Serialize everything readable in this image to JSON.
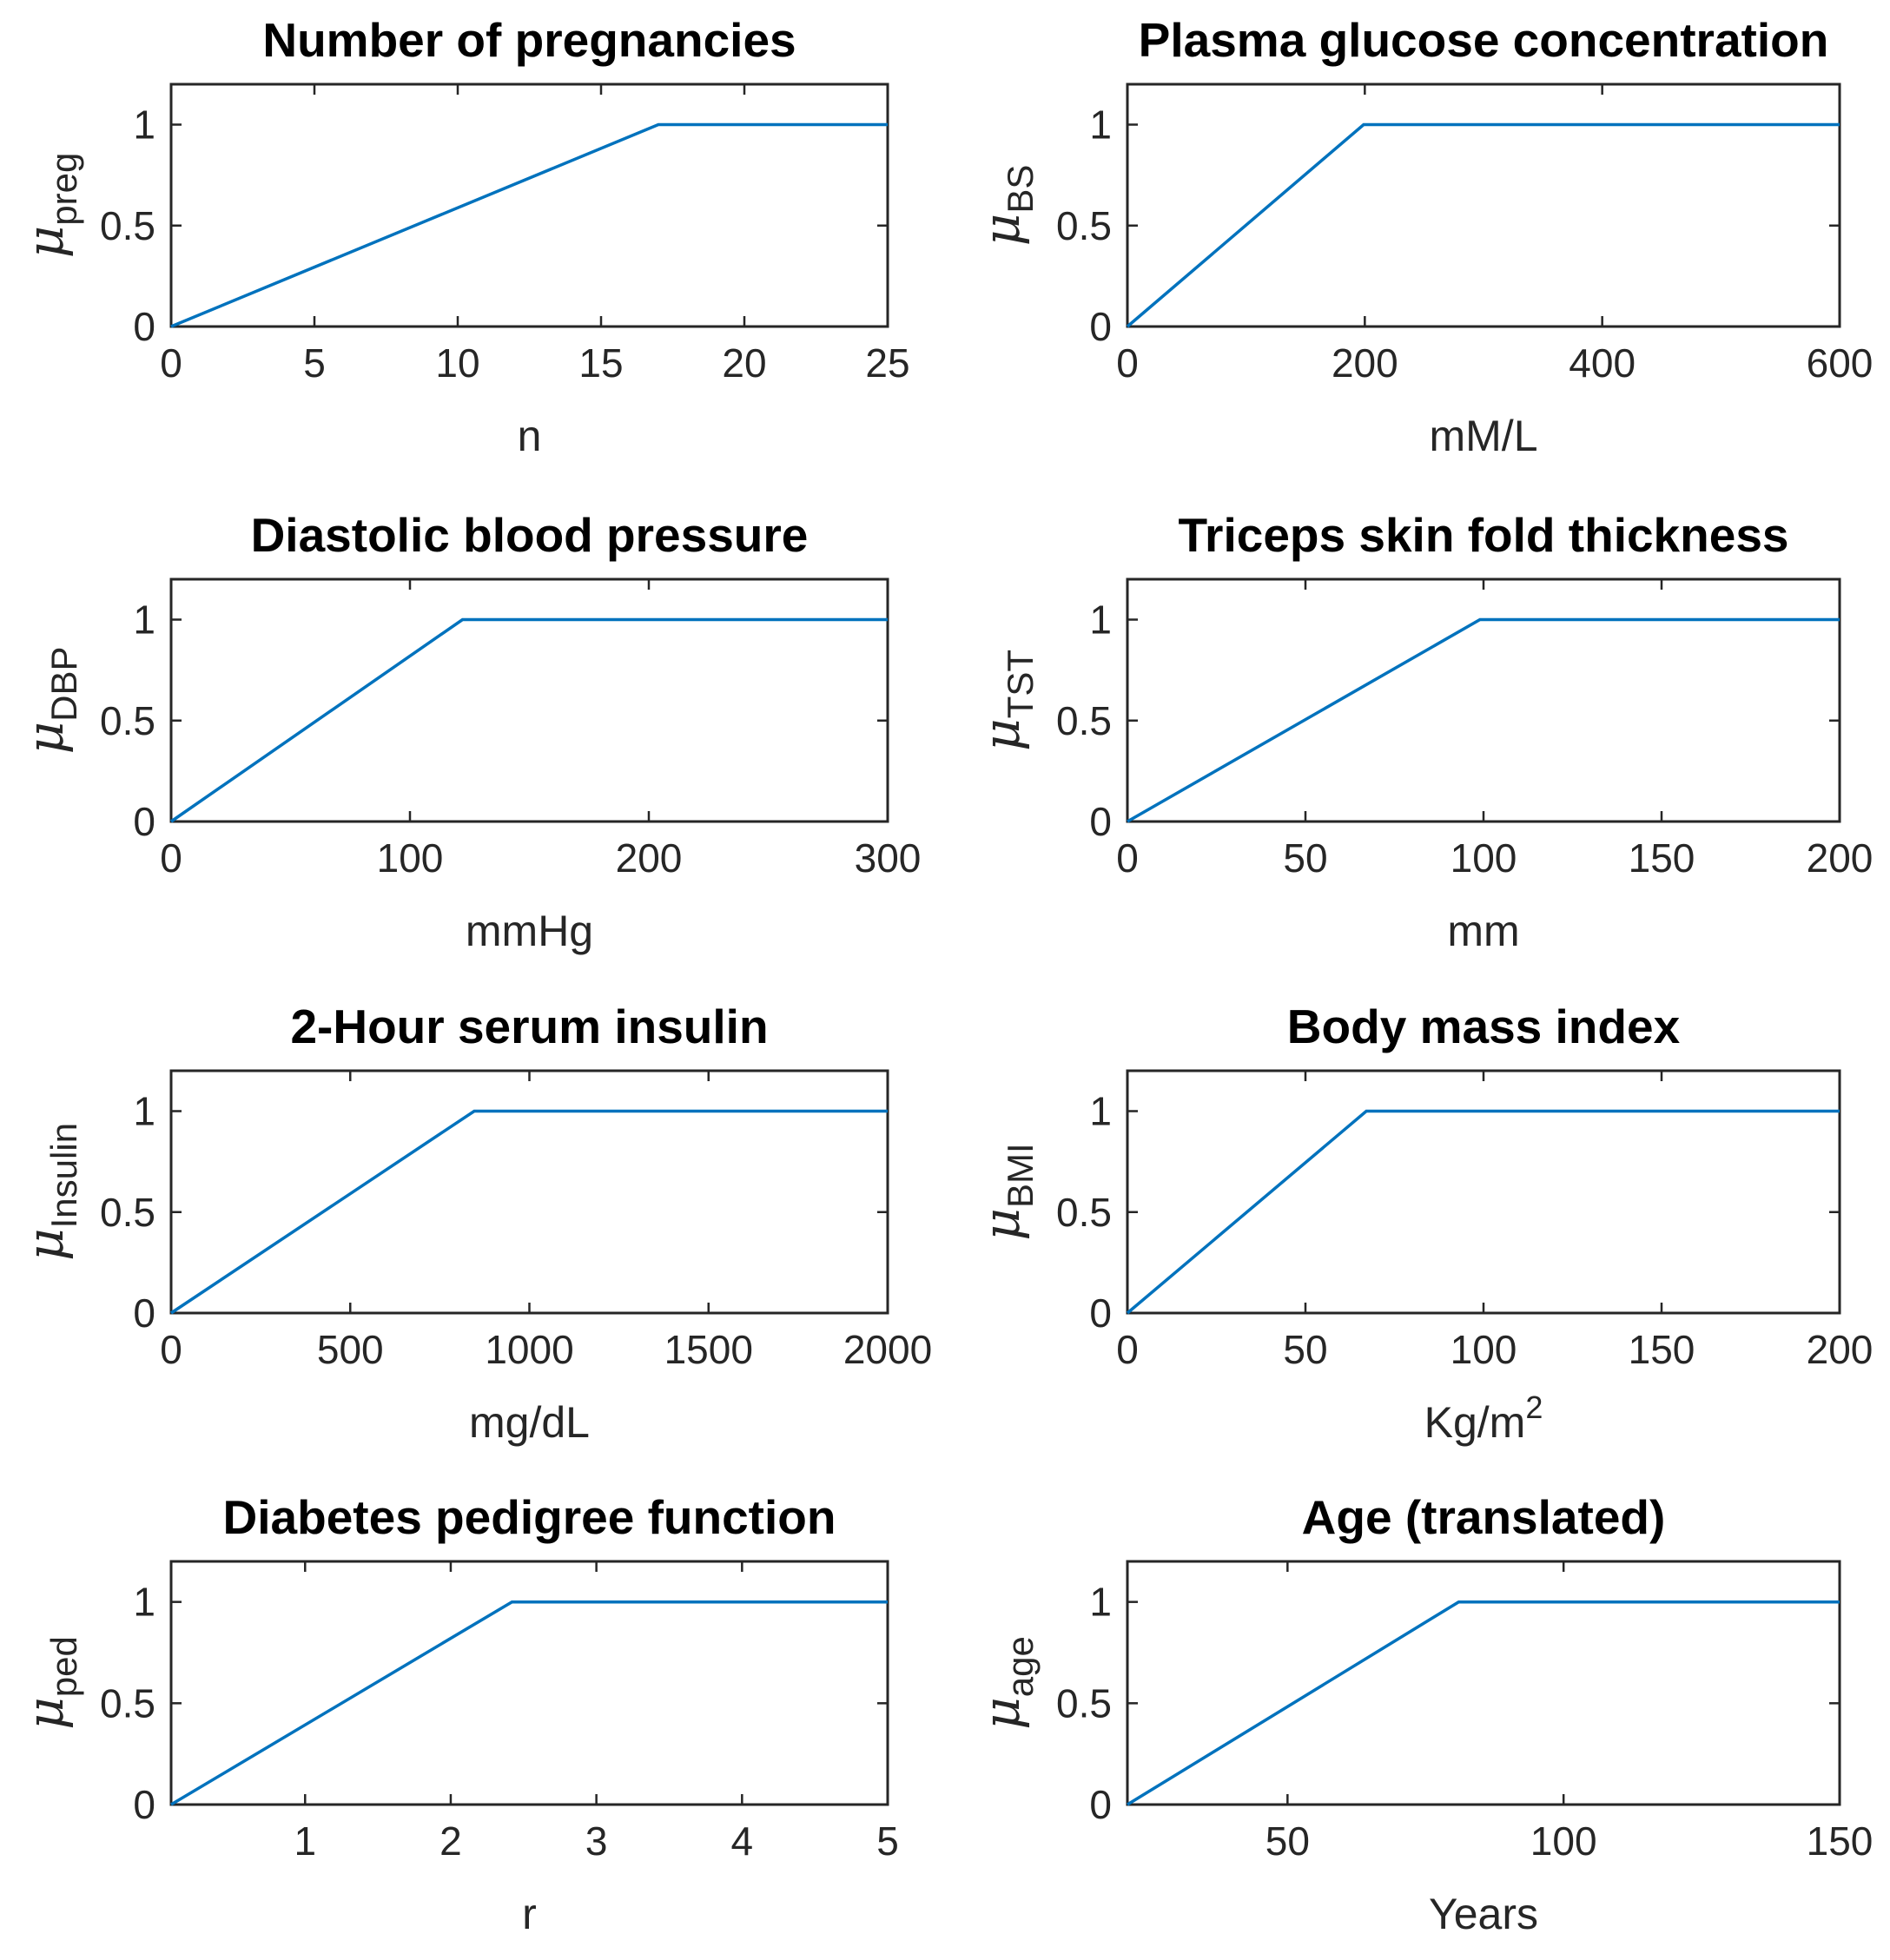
{
  "colors": {
    "line": "#0072BD",
    "axis": "#262626",
    "background": "#FFFFFF"
  },
  "chart_data": [
    {
      "type": "line",
      "title": "Number of pregnancies",
      "xlabel": "n",
      "ylabel": {
        "symbol": "μ",
        "sub": "preg"
      },
      "xlim": [
        0,
        25
      ],
      "ylim": [
        0,
        1.2
      ],
      "xticks": [
        0,
        5,
        10,
        15,
        20,
        25
      ],
      "xticklabels": [
        "0",
        "5",
        "10",
        "15",
        "20",
        "25"
      ],
      "yticks": [
        0,
        0.5,
        1
      ],
      "yticklabels": [
        "0",
        "0.5",
        "1"
      ],
      "grid": false,
      "x": [
        0,
        17,
        25
      ],
      "y": [
        0,
        1,
        1
      ]
    },
    {
      "type": "line",
      "title": "Plasma glucose concentration",
      "xlabel": "mM/L",
      "ylabel": {
        "symbol": "μ",
        "sub": "BS"
      },
      "xlim": [
        0,
        600
      ],
      "ylim": [
        0,
        1.2
      ],
      "xticks": [
        0,
        200,
        400,
        600
      ],
      "xticklabels": [
        "0",
        "200",
        "400",
        "600"
      ],
      "yticks": [
        0,
        0.5,
        1
      ],
      "yticklabels": [
        "0",
        "0.5",
        "1"
      ],
      "grid": false,
      "x": [
        0,
        199,
        600
      ],
      "y": [
        0,
        1,
        1
      ]
    },
    {
      "type": "line",
      "title": "Diastolic blood pressure",
      "xlabel": "mmHg",
      "ylabel": {
        "symbol": "μ",
        "sub": "DBP"
      },
      "xlim": [
        0,
        300
      ],
      "ylim": [
        0,
        1.2
      ],
      "xticks": [
        0,
        100,
        200,
        300
      ],
      "xticklabels": [
        "0",
        "100",
        "200",
        "300"
      ],
      "yticks": [
        0,
        0.5,
        1
      ],
      "yticklabels": [
        "0",
        "0.5",
        "1"
      ],
      "grid": false,
      "x": [
        0,
        122,
        300
      ],
      "y": [
        0,
        1,
        1
      ]
    },
    {
      "type": "line",
      "title": "Triceps skin fold thickness",
      "xlabel": "mm",
      "ylabel": {
        "symbol": "μ",
        "sub": "TST"
      },
      "xlim": [
        0,
        200
      ],
      "ylim": [
        0,
        1.2
      ],
      "xticks": [
        0,
        50,
        100,
        150,
        200
      ],
      "xticklabels": [
        "0",
        "50",
        "100",
        "150",
        "200"
      ],
      "yticks": [
        0,
        0.5,
        1
      ],
      "yticklabels": [
        "0",
        "0.5",
        "1"
      ],
      "grid": false,
      "x": [
        0,
        99,
        200
      ],
      "y": [
        0,
        1,
        1
      ]
    },
    {
      "type": "line",
      "title": "2-Hour serum insulin",
      "xlabel": "mg/dL",
      "ylabel": {
        "symbol": "μ",
        "sub": "Insulin"
      },
      "xlim": [
        0,
        2000
      ],
      "ylim": [
        0,
        1.2
      ],
      "xticks": [
        0,
        500,
        1000,
        1500,
        2000
      ],
      "xticklabels": [
        "0",
        "500",
        "1000",
        "1500",
        "2000"
      ],
      "yticks": [
        0,
        0.5,
        1
      ],
      "yticklabels": [
        "0",
        "0.5",
        "1"
      ],
      "grid": false,
      "x": [
        0,
        846,
        2000
      ],
      "y": [
        0,
        1,
        1
      ]
    },
    {
      "type": "line",
      "title": "Body mass index",
      "xlabel": {
        "base": "Kg/m",
        "sup": "2"
      },
      "ylabel": {
        "symbol": "μ",
        "sub": "BMI"
      },
      "xlim": [
        0,
        200
      ],
      "ylim": [
        0,
        1.2
      ],
      "xticks": [
        0,
        50,
        100,
        150,
        200
      ],
      "xticklabels": [
        "0",
        "50",
        "100",
        "150",
        "200"
      ],
      "yticks": [
        0,
        0.5,
        1
      ],
      "yticklabels": [
        "0",
        "0.5",
        "1"
      ],
      "grid": false,
      "x": [
        0,
        67.1,
        200
      ],
      "y": [
        0,
        1,
        1
      ]
    },
    {
      "type": "line",
      "title": "Diabetes pedigree function",
      "xlabel": "r",
      "ylabel": {
        "symbol": "μ",
        "sub": "ped"
      },
      "xlim": [
        0.08,
        5
      ],
      "ylim": [
        0,
        1.2
      ],
      "xticks": [
        1,
        2,
        3,
        4,
        5
      ],
      "xticklabels": [
        "1",
        "2",
        "3",
        "4",
        "5"
      ],
      "yticks": [
        0,
        0.5,
        1
      ],
      "yticklabels": [
        "0",
        "0.5",
        "1"
      ],
      "grid": false,
      "x": [
        0.08,
        2.42,
        5
      ],
      "y": [
        0,
        1,
        1
      ]
    },
    {
      "type": "line",
      "title": "Age (translated)",
      "xlabel": "Years",
      "ylabel": {
        "symbol": "μ",
        "sub": "age"
      },
      "xlim": [
        21,
        150
      ],
      "ylim": [
        0,
        1.2
      ],
      "xticks": [
        50,
        100,
        150
      ],
      "xticklabels": [
        "50",
        "100",
        "150"
      ],
      "yticks": [
        0,
        0.5,
        1
      ],
      "yticklabels": [
        "0",
        "0.5",
        "1"
      ],
      "grid": false,
      "x": [
        21,
        81,
        150
      ],
      "y": [
        0,
        1,
        1
      ]
    }
  ]
}
